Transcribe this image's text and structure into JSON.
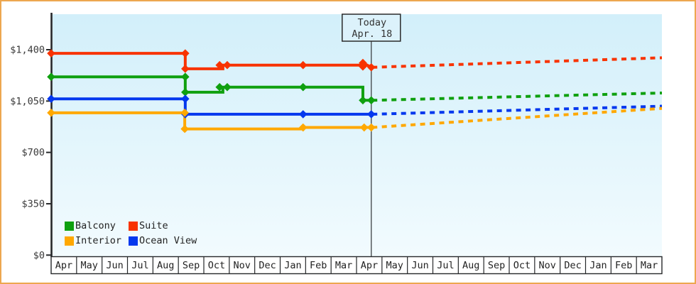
{
  "page": {
    "frame_border_color": "#eda74f",
    "background": "#ffffff"
  },
  "today_flag": {
    "line1": "Today",
    "line2": "Apr. 18"
  },
  "legend": {
    "position": "bottom-left-inside-plot",
    "items": [
      {
        "label": "Balcony",
        "color": "#0fa00f"
      },
      {
        "label": "Suite",
        "color": "#f83300"
      },
      {
        "label": "Interior",
        "color": "#ffa800"
      },
      {
        "label": "Ocean View",
        "color": "#0438ee"
      }
    ]
  },
  "chart_data": {
    "type": "line",
    "title": "",
    "xlabel": "",
    "ylabel": "",
    "grid": false,
    "background_gradient": [
      "#d2effa",
      "#f2fbfe"
    ],
    "x_axis": {
      "unit": "month index, 0 = first Apr cell left edge, 24 = right edge",
      "tick_labels": [
        "Apr",
        "May",
        "Jun",
        "Jul",
        "Aug",
        "Sep",
        "Oct",
        "Nov",
        "Dec",
        "Jan",
        "Feb",
        "Mar",
        "Apr",
        "May",
        "Jun",
        "Jul",
        "Aug",
        "Sep",
        "Oct",
        "Nov",
        "Dec",
        "Jan",
        "Feb",
        "Mar"
      ],
      "today_x": 12.58,
      "today_label": "Apr. 18"
    },
    "y_axis": {
      "range": [
        0,
        1642
      ],
      "ticks": [
        {
          "label": "$0",
          "value": 0
        },
        {
          "label": "$350",
          "value": 350
        },
        {
          "label": "$700",
          "value": 700
        },
        {
          "label": "$1,050",
          "value": 1050
        },
        {
          "label": "$1,400",
          "value": 1400
        }
      ]
    },
    "series": [
      {
        "name": "Suite",
        "color": "#f83300",
        "solid_points": [
          [
            0,
            1375
          ],
          [
            5.27,
            1375
          ],
          [
            5.27,
            1270
          ],
          [
            6.75,
            1270
          ],
          [
            6.75,
            1295
          ],
          [
            12.25,
            1295
          ],
          [
            12.25,
            1310
          ],
          [
            12.58,
            1280
          ]
        ],
        "marker_points": [
          [
            0,
            1375
          ],
          [
            5.27,
            1375
          ],
          [
            5.27,
            1270
          ],
          [
            6.62,
            1295
          ],
          [
            6.92,
            1295
          ],
          [
            9.9,
            1295
          ],
          [
            12.25,
            1310
          ],
          [
            12.25,
            1285
          ],
          [
            12.58,
            1280
          ]
        ],
        "dashed_forecast": [
          [
            12.62,
            1280
          ],
          [
            24,
            1345
          ]
        ]
      },
      {
        "name": "Balcony",
        "color": "#0fa00f",
        "solid_points": [
          [
            0,
            1215
          ],
          [
            5.27,
            1215
          ],
          [
            5.27,
            1110
          ],
          [
            6.75,
            1110
          ],
          [
            6.75,
            1145
          ],
          [
            12.25,
            1145
          ],
          [
            12.25,
            1055
          ],
          [
            12.58,
            1055
          ]
        ],
        "marker_points": [
          [
            0,
            1215
          ],
          [
            5.27,
            1215
          ],
          [
            5.27,
            1110
          ],
          [
            6.62,
            1145
          ],
          [
            6.92,
            1145
          ],
          [
            9.9,
            1145
          ],
          [
            12.25,
            1055
          ],
          [
            12.58,
            1055
          ]
        ],
        "dashed_forecast": [
          [
            12.62,
            1055
          ],
          [
            24,
            1105
          ]
        ]
      },
      {
        "name": "Ocean View",
        "color": "#0438ee",
        "solid_points": [
          [
            0,
            1065
          ],
          [
            5.27,
            1065
          ],
          [
            5.27,
            960
          ],
          [
            12.58,
            960
          ]
        ],
        "marker_points": [
          [
            0,
            1065
          ],
          [
            5.27,
            1065
          ],
          [
            5.27,
            960
          ],
          [
            9.9,
            960
          ],
          [
            12.58,
            960
          ]
        ],
        "dashed_forecast": [
          [
            12.62,
            960
          ],
          [
            24,
            1015
          ]
        ]
      },
      {
        "name": "Interior",
        "color": "#ffa800",
        "solid_points": [
          [
            0,
            970
          ],
          [
            5.25,
            970
          ],
          [
            5.25,
            860
          ],
          [
            9.9,
            860
          ],
          [
            9.9,
            870
          ],
          [
            12.58,
            870
          ]
        ],
        "marker_points": [
          [
            0,
            970
          ],
          [
            5.25,
            970
          ],
          [
            5.25,
            860
          ],
          [
            9.9,
            870
          ],
          [
            12.3,
            870
          ],
          [
            12.58,
            870
          ]
        ],
        "dashed_forecast": [
          [
            12.62,
            870
          ],
          [
            24,
            1000
          ]
        ]
      }
    ],
    "legend_entries": [
      "Balcony",
      "Suite",
      "Interior",
      "Ocean View"
    ]
  }
}
